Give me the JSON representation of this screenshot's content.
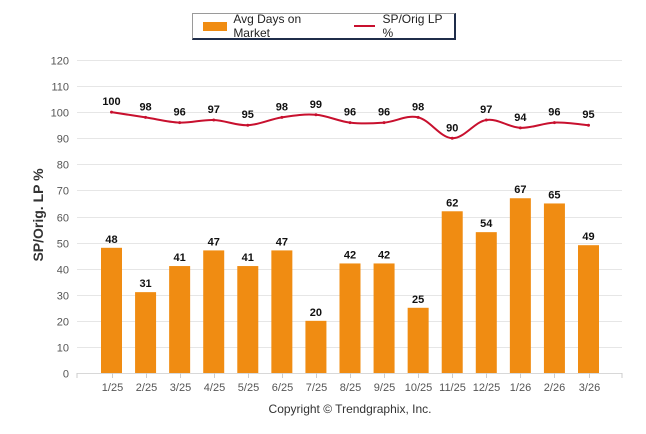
{
  "legend": {
    "bar_label": "Avg Days on Market",
    "line_label": "SP/Orig LP %"
  },
  "copyright": "Copyright © Trendgraphix, Inc.",
  "colors": {
    "bar": "#F08C12",
    "line": "#C8102E",
    "grid": "#e6e6e6",
    "axis_text": "#555555"
  },
  "chart_data": {
    "type": "bar",
    "title": "",
    "xlabel": "",
    "ylabel": "SP/Orig. LP %",
    "ylim": [
      0,
      120
    ],
    "yticks": [
      0,
      10,
      20,
      30,
      40,
      50,
      60,
      70,
      80,
      90,
      100,
      110,
      120
    ],
    "grid": true,
    "legend_position": "top-center",
    "categories": [
      "1/25",
      "2/25",
      "3/25",
      "4/25",
      "5/25",
      "6/25",
      "7/25",
      "8/25",
      "9/25",
      "10/25",
      "11/25",
      "12/25",
      "1/26",
      "2/26",
      "3/26"
    ],
    "series": [
      {
        "name": "Avg Days on Market",
        "type": "bar",
        "values": [
          48,
          31,
          41,
          47,
          41,
          47,
          20,
          42,
          42,
          25,
          62,
          54,
          67,
          65,
          49
        ]
      },
      {
        "name": "SP/Orig LP %",
        "type": "line",
        "values": [
          100,
          98,
          96,
          97,
          95,
          98,
          99,
          96,
          96,
          98,
          90,
          97,
          94,
          96,
          95
        ]
      }
    ]
  }
}
